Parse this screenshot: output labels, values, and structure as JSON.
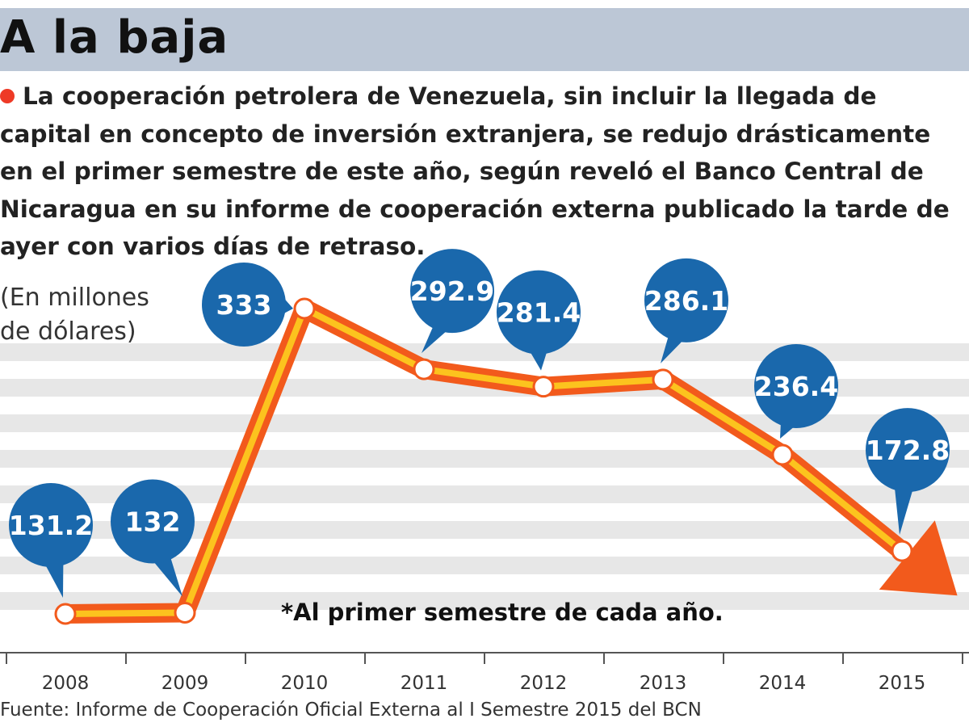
{
  "header": {
    "title": "A la baja"
  },
  "intro": {
    "text": "La cooperación petrolera de Venezuela, sin incluir la llegada de capital en concepto de inversión extranjera, se redujo drásticamente en el primer semestre de este año, según reveló el Banco Central de Nicaragua en su informe de cooperación externa publicado la tarde de ayer con varios días de retraso."
  },
  "unit_label": {
    "line1": "(En millones",
    "line2": "de dólares)"
  },
  "chart_data": {
    "type": "line",
    "title": "A la baja",
    "ylabel": "(En millones de dólares)",
    "xlabel": "",
    "categories": [
      "2008",
      "2009",
      "2010",
      "2011",
      "2012",
      "2013",
      "2014",
      "2015"
    ],
    "series": [
      {
        "name": "Cooperación petrolera de Venezuela",
        "values": [
          131.2,
          132,
          333,
          292.9,
          281.4,
          286.1,
          236.4,
          172.8
        ],
        "labels": [
          "131.2",
          "132",
          "333",
          "292.9",
          "281.4",
          "286.1",
          "236.4",
          "172.8"
        ]
      }
    ],
    "grid": true,
    "trend": "down",
    "footnote": "*Al primer semestre de cada año."
  },
  "colors": {
    "header_bar": "#bcc7d6",
    "bubble": "#1a68ac",
    "line_outer": "#f25a1c",
    "line_inner": "#fcc31e",
    "arrow": "#f25a1c",
    "bullet": "#ee3a26",
    "grid_band": "#e7e7e7"
  },
  "source": "Fuente: Informe de Cooperación Oficial Externa al I Semestre 2015 del BCN"
}
